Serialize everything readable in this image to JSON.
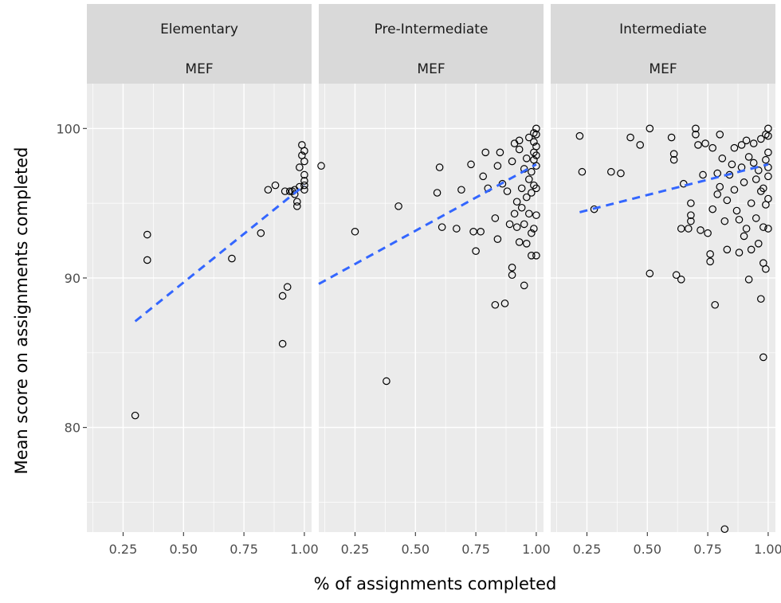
{
  "chart_data": {
    "type": "scatter",
    "xlabel": "% of assignments completed",
    "ylabel": "Mean score on assignments completed",
    "xlim": [
      0.1,
      1.03
    ],
    "ylim": [
      73,
      103
    ],
    "x_ticks": [
      0.25,
      0.5,
      0.75,
      1.0
    ],
    "x_tick_labels": [
      "0.25",
      "0.50",
      "0.75",
      "1.00"
    ],
    "y_ticks": [
      80,
      90,
      100
    ],
    "y_tick_labels": [
      "80",
      "90",
      "100"
    ],
    "grid": true,
    "trend_line_style": "dashed",
    "colors": {
      "panel_bg": "#ebebeb",
      "strip_bg": "#d9d9d9",
      "grid": "#ffffff",
      "trend": "#3366ff",
      "points": "#000000"
    },
    "panels": [
      {
        "strip": [
          "Elementary",
          "MEF"
        ],
        "trend": [
          [
            0.3,
            87.1
          ],
          [
            1.0,
            96.2
          ]
        ],
        "points": [
          [
            0.3,
            80.8
          ],
          [
            0.35,
            92.9
          ],
          [
            0.35,
            91.2
          ],
          [
            0.7,
            91.3
          ],
          [
            0.82,
            93.0
          ],
          [
            0.85,
            95.9
          ],
          [
            0.88,
            96.2
          ],
          [
            0.91,
            88.8
          ],
          [
            0.91,
            85.6
          ],
          [
            0.92,
            95.8
          ],
          [
            0.93,
            89.4
          ],
          [
            0.94,
            95.8
          ],
          [
            0.95,
            95.8
          ],
          [
            0.96,
            95.9
          ],
          [
            0.96,
            95.6
          ],
          [
            0.97,
            94.8
          ],
          [
            0.97,
            95.1
          ],
          [
            0.98,
            96.1
          ],
          [
            0.98,
            97.4
          ],
          [
            0.99,
            98.2
          ],
          [
            0.99,
            98.9
          ],
          [
            1.0,
            98.5
          ],
          [
            1.0,
            97.8
          ],
          [
            1.0,
            96.9
          ],
          [
            1.0,
            96.5
          ],
          [
            1.0,
            96.2
          ],
          [
            1.0,
            95.9
          ]
        ]
      },
      {
        "strip": [
          "Pre-Intermediate",
          "MEF"
        ],
        "trend": [
          [
            0.1,
            89.6
          ],
          [
            1.0,
            97.6
          ]
        ],
        "points": [
          [
            0.11,
            97.5
          ],
          [
            0.25,
            93.1
          ],
          [
            0.38,
            83.1
          ],
          [
            0.43,
            94.8
          ],
          [
            0.59,
            95.7
          ],
          [
            0.6,
            97.4
          ],
          [
            0.61,
            93.4
          ],
          [
            0.67,
            93.3
          ],
          [
            0.69,
            95.9
          ],
          [
            0.73,
            97.6
          ],
          [
            0.74,
            93.1
          ],
          [
            0.75,
            91.8
          ],
          [
            0.77,
            93.1
          ],
          [
            0.78,
            96.8
          ],
          [
            0.79,
            98.4
          ],
          [
            0.8,
            96.0
          ],
          [
            0.83,
            94.0
          ],
          [
            0.83,
            88.2
          ],
          [
            0.84,
            97.5
          ],
          [
            0.84,
            92.6
          ],
          [
            0.85,
            98.4
          ],
          [
            0.86,
            96.3
          ],
          [
            0.87,
            88.3
          ],
          [
            0.88,
            95.8
          ],
          [
            0.89,
            93.6
          ],
          [
            0.9,
            90.7
          ],
          [
            0.9,
            90.2
          ],
          [
            0.9,
            97.8
          ],
          [
            0.91,
            94.3
          ],
          [
            0.91,
            99.0
          ],
          [
            0.92,
            93.4
          ],
          [
            0.92,
            95.1
          ],
          [
            0.93,
            98.6
          ],
          [
            0.93,
            92.4
          ],
          [
            0.93,
            99.2
          ],
          [
            0.94,
            96.0
          ],
          [
            0.94,
            94.7
          ],
          [
            0.95,
            89.5
          ],
          [
            0.95,
            97.3
          ],
          [
            0.95,
            93.6
          ],
          [
            0.96,
            92.3
          ],
          [
            0.96,
            95.4
          ],
          [
            0.96,
            98.0
          ],
          [
            0.97,
            94.3
          ],
          [
            0.97,
            96.6
          ],
          [
            0.97,
            99.4
          ],
          [
            0.98,
            91.5
          ],
          [
            0.98,
            93.0
          ],
          [
            0.98,
            95.7
          ],
          [
            0.98,
            97.1
          ],
          [
            0.99,
            93.3
          ],
          [
            0.99,
            96.2
          ],
          [
            0.99,
            98.4
          ],
          [
            0.99,
            99.7
          ],
          [
            1.0,
            91.5
          ],
          [
            1.0,
            94.2
          ],
          [
            1.0,
            96.0
          ],
          [
            1.0,
            97.5
          ],
          [
            1.0,
            98.8
          ],
          [
            1.0,
            99.6
          ],
          [
            1.0,
            100.0
          ],
          [
            0.99,
            97.9
          ],
          [
            1.0,
            98.2
          ],
          [
            0.99,
            99.1
          ]
        ]
      },
      {
        "strip": [
          "Intermediate",
          "MEF"
        ],
        "trend": [
          [
            0.22,
            94.4
          ],
          [
            1.0,
            97.6
          ]
        ],
        "points": [
          [
            0.22,
            99.5
          ],
          [
            0.23,
            97.1
          ],
          [
            0.28,
            94.6
          ],
          [
            0.35,
            97.1
          ],
          [
            0.39,
            97.0
          ],
          [
            0.43,
            99.4
          ],
          [
            0.47,
            98.9
          ],
          [
            0.51,
            100.0
          ],
          [
            0.51,
            90.3
          ],
          [
            0.6,
            99.4
          ],
          [
            0.61,
            98.3
          ],
          [
            0.61,
            97.9
          ],
          [
            0.62,
            90.2
          ],
          [
            0.64,
            93.3
          ],
          [
            0.64,
            89.9
          ],
          [
            0.65,
            96.3
          ],
          [
            0.67,
            93.3
          ],
          [
            0.68,
            93.8
          ],
          [
            0.68,
            94.2
          ],
          [
            0.68,
            95.0
          ],
          [
            0.7,
            100.0
          ],
          [
            0.7,
            99.6
          ],
          [
            0.71,
            98.9
          ],
          [
            0.72,
            93.2
          ],
          [
            0.73,
            96.9
          ],
          [
            0.74,
            99.0
          ],
          [
            0.75,
            93.0
          ],
          [
            0.76,
            91.6
          ],
          [
            0.76,
            91.1
          ],
          [
            0.77,
            98.7
          ],
          [
            0.77,
            94.6
          ],
          [
            0.78,
            88.2
          ],
          [
            0.79,
            95.6
          ],
          [
            0.79,
            97.0
          ],
          [
            0.8,
            99.6
          ],
          [
            0.8,
            96.1
          ],
          [
            0.81,
            98.0
          ],
          [
            0.82,
            93.8
          ],
          [
            0.82,
            73.2
          ],
          [
            0.83,
            91.9
          ],
          [
            0.83,
            95.2
          ],
          [
            0.84,
            96.9
          ],
          [
            0.85,
            97.6
          ],
          [
            0.86,
            98.7
          ],
          [
            0.86,
            95.9
          ],
          [
            0.87,
            94.5
          ],
          [
            0.88,
            91.7
          ],
          [
            0.88,
            93.9
          ],
          [
            0.89,
            97.4
          ],
          [
            0.89,
            98.9
          ],
          [
            0.9,
            92.8
          ],
          [
            0.9,
            96.4
          ],
          [
            0.91,
            99.2
          ],
          [
            0.91,
            93.3
          ],
          [
            0.92,
            89.9
          ],
          [
            0.92,
            98.1
          ],
          [
            0.93,
            95.0
          ],
          [
            0.93,
            91.9
          ],
          [
            0.94,
            97.7
          ],
          [
            0.94,
            99.0
          ],
          [
            0.95,
            94.0
          ],
          [
            0.95,
            96.6
          ],
          [
            0.96,
            92.3
          ],
          [
            0.96,
            97.2
          ],
          [
            0.97,
            95.8
          ],
          [
            0.97,
            99.3
          ],
          [
            0.97,
            88.6
          ],
          [
            0.98,
            84.7
          ],
          [
            0.98,
            91.0
          ],
          [
            0.98,
            93.4
          ],
          [
            0.98,
            96.0
          ],
          [
            0.99,
            97.9
          ],
          [
            0.99,
            99.6
          ],
          [
            0.99,
            90.6
          ],
          [
            1.0,
            95.3
          ],
          [
            1.0,
            96.8
          ],
          [
            1.0,
            98.4
          ],
          [
            1.0,
            99.5
          ],
          [
            1.0,
            100.0
          ],
          [
            1.0,
            97.4
          ],
          [
            0.99,
            94.9
          ],
          [
            1.0,
            93.3
          ]
        ]
      }
    ]
  }
}
